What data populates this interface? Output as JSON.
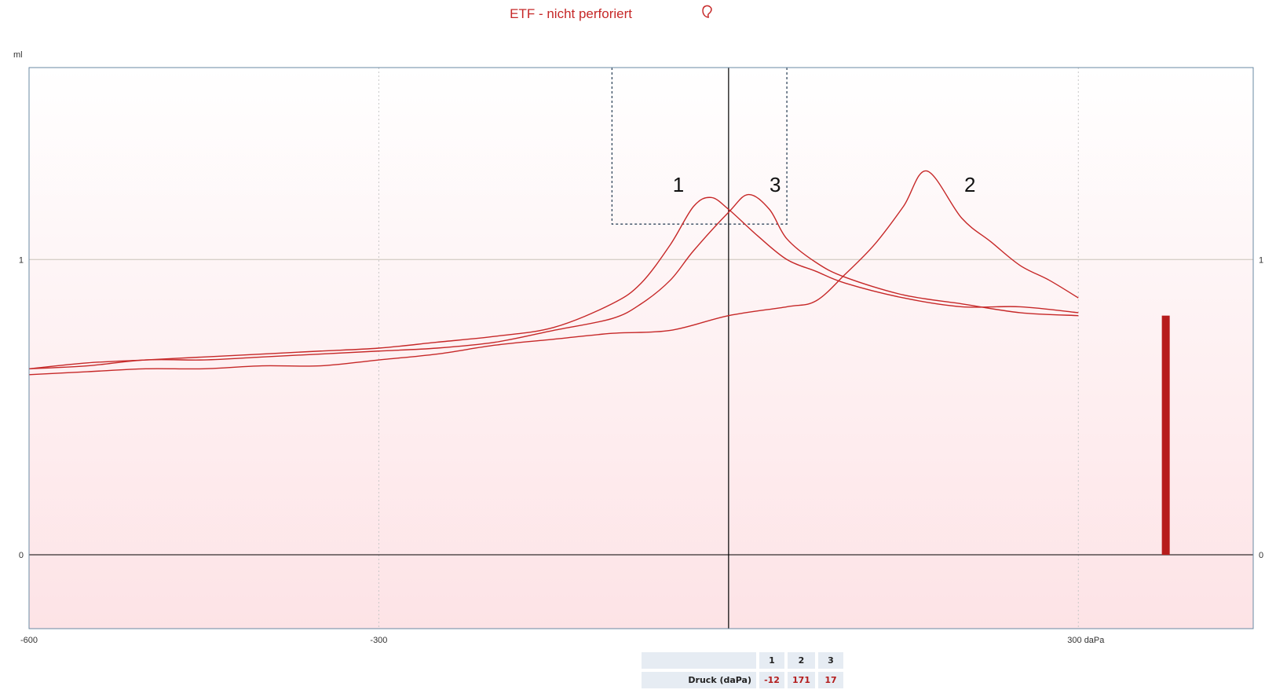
{
  "title": "ETF - nicht perforiert",
  "title_icon": "ear-icon",
  "colors": {
    "curve": "#c62828",
    "bar": "#b71c1c",
    "title": "#c62828",
    "frame": "#6a8aa3",
    "table_cell": "#e6ecf3",
    "table_value": "#b31b1b"
  },
  "chart_data": {
    "type": "line",
    "xlabel": "daPa",
    "ylabel": "ml",
    "xlim": [
      -600,
      450
    ],
    "ylim": [
      -0.25,
      1.65
    ],
    "x_ticks": [
      -600,
      -300,
      300
    ],
    "x_tick_labels": [
      "-600",
      "-300",
      "300 daPa"
    ],
    "y_ticks": [
      0,
      1
    ],
    "y_tick_labels": [
      "0",
      "1"
    ],
    "grid": true,
    "legend": "none",
    "reference_line_x": 0,
    "tolerance_box": {
      "x": [
        -100,
        50
      ],
      "y": [
        1.12,
        1.65
      ]
    },
    "bar": {
      "x": 375,
      "value": 0.81
    },
    "series": [
      {
        "label": "1",
        "label_pos": [
          -43,
          1.23
        ],
        "x": [
          -600,
          -550,
          -500,
          -450,
          -400,
          -350,
          -300,
          -250,
          -200,
          -150,
          -100,
          -75,
          -50,
          -30,
          -15,
          0,
          25,
          50,
          75,
          100,
          150,
          200,
          250,
          300
        ],
        "y": [
          0.63,
          0.65,
          0.66,
          0.67,
          0.68,
          0.69,
          0.7,
          0.72,
          0.74,
          0.77,
          0.85,
          0.92,
          1.05,
          1.18,
          1.21,
          1.17,
          1.08,
          1.0,
          0.96,
          0.92,
          0.87,
          0.84,
          0.84,
          0.82
        ]
      },
      {
        "label": "2",
        "label_pos": [
          207,
          1.23
        ],
        "x": [
          -600,
          -550,
          -500,
          -450,
          -400,
          -350,
          -300,
          -250,
          -200,
          -150,
          -100,
          -50,
          0,
          50,
          75,
          100,
          125,
          150,
          170,
          200,
          225,
          250,
          275,
          300
        ],
        "y": [
          0.61,
          0.62,
          0.63,
          0.63,
          0.64,
          0.64,
          0.66,
          0.68,
          0.71,
          0.73,
          0.75,
          0.76,
          0.81,
          0.84,
          0.86,
          0.95,
          1.05,
          1.18,
          1.3,
          1.14,
          1.06,
          0.98,
          0.93,
          0.87
        ]
      },
      {
        "label": "3",
        "label_pos": [
          40,
          1.23
        ],
        "x": [
          -600,
          -550,
          -500,
          -450,
          -400,
          -350,
          -300,
          -250,
          -200,
          -150,
          -100,
          -75,
          -50,
          -30,
          0,
          17,
          35,
          50,
          75,
          100,
          150,
          200,
          250,
          300
        ],
        "y": [
          0.63,
          0.64,
          0.66,
          0.66,
          0.67,
          0.68,
          0.69,
          0.7,
          0.72,
          0.76,
          0.8,
          0.85,
          0.93,
          1.03,
          1.16,
          1.22,
          1.17,
          1.07,
          0.99,
          0.94,
          0.88,
          0.85,
          0.82,
          0.81
        ]
      }
    ]
  },
  "table": {
    "columns": [
      "1",
      "2",
      "3"
    ],
    "row_label": "Druck (daPa)",
    "values": [
      "-12",
      "171",
      "17"
    ]
  }
}
